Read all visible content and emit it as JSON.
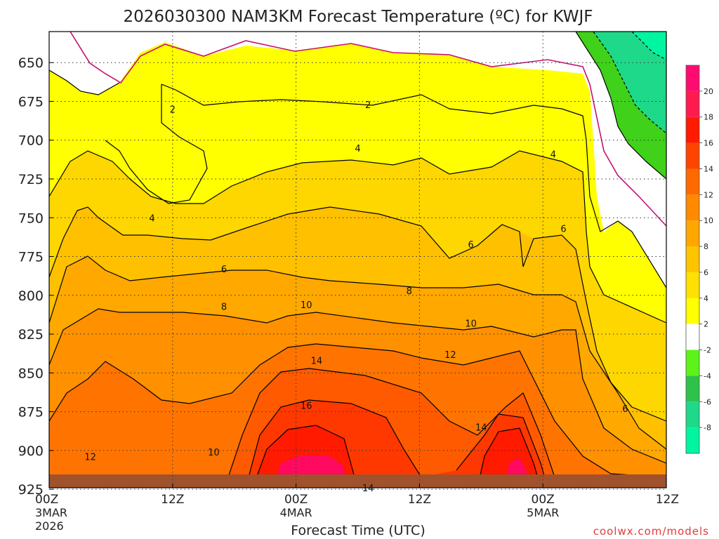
{
  "chart_data": {
    "type": "heatmap",
    "title": "2026030300 NAM3KM Forecast Temperature (ºC) for KWJF",
    "xlabel": "Forecast Time (UTC)",
    "ylabel": "",
    "credit": "coolwx.com/models",
    "ylim": [
      915,
      630
    ],
    "xlim": [
      0,
      60
    ],
    "y_ticks": [
      {
        "value": 650,
        "label": "650"
      },
      {
        "value": 675,
        "label": "675"
      },
      {
        "value": 700,
        "label": "700"
      },
      {
        "value": 725,
        "label": "725"
      },
      {
        "value": 750,
        "label": "750"
      },
      {
        "value": 775,
        "label": "775"
      },
      {
        "value": 800,
        "label": "800"
      },
      {
        "value": 825,
        "label": "825"
      },
      {
        "value": 850,
        "label": "850"
      },
      {
        "value": 875,
        "label": "875"
      },
      {
        "value": 900,
        "label": "900"
      },
      {
        "value": 925,
        "label": "925"
      }
    ],
    "x_ticks": [
      {
        "value": 0,
        "label": "00Z",
        "sub1": "3MAR",
        "sub2": "2026"
      },
      {
        "value": 12,
        "label": "12Z",
        "sub1": "",
        "sub2": ""
      },
      {
        "value": 24,
        "label": "00Z",
        "sub1": "4MAR",
        "sub2": ""
      },
      {
        "value": 36,
        "label": "12Z",
        "sub1": "",
        "sub2": ""
      },
      {
        "value": 48,
        "label": "00Z",
        "sub1": "5MAR",
        "sub2": ""
      },
      {
        "value": 60,
        "label": "12Z",
        "sub1": "",
        "sub2": ""
      }
    ],
    "grid": true,
    "colorbar": {
      "levels": [
        "-8",
        "-6",
        "-4",
        "-2",
        "2",
        "4",
        "6",
        "8",
        "10",
        "12",
        "14",
        "16",
        "18",
        "20"
      ],
      "colors": [
        "#00f5a0",
        "#1ed98a",
        "#2ec24a",
        "#5cf21a",
        "#ffffff",
        "#ffff00",
        "#ffe000",
        "#ffc400",
        "#ffa600",
        "#ff8a00",
        "#ff6a00",
        "#ff4400",
        "#ff1a00",
        "#ff1a50",
        "#ff0a70"
      ]
    },
    "contour_labels": [
      {
        "text": "2",
        "x": 12.0,
        "y": 680
      },
      {
        "text": "2",
        "x": 31.0,
        "y": 677
      },
      {
        "text": "4",
        "x": 30.0,
        "y": 705
      },
      {
        "text": "4",
        "x": 49.0,
        "y": 709
      },
      {
        "text": "4",
        "x": 10.0,
        "y": 750
      },
      {
        "text": "6",
        "x": 17.0,
        "y": 783
      },
      {
        "text": "6",
        "x": 41.0,
        "y": 767
      },
      {
        "text": "6",
        "x": 50.0,
        "y": 757
      },
      {
        "text": "6",
        "x": 56.0,
        "y": 873
      },
      {
        "text": "8",
        "x": 17.0,
        "y": 807
      },
      {
        "text": "8",
        "x": 35.0,
        "y": 797
      },
      {
        "text": "10",
        "x": 25.0,
        "y": 806
      },
      {
        "text": "10",
        "x": 41.0,
        "y": 818
      },
      {
        "text": "10",
        "x": 16.0,
        "y": 901
      },
      {
        "text": "12",
        "x": 39.0,
        "y": 838
      },
      {
        "text": "12",
        "x": 4.0,
        "y": 904
      },
      {
        "text": "14",
        "x": 26.0,
        "y": 842
      },
      {
        "text": "14",
        "x": 42.0,
        "y": 885
      },
      {
        "text": "14",
        "x": 31.0,
        "y": 924
      },
      {
        "text": "16",
        "x": 25.0,
        "y": 871
      }
    ]
  }
}
